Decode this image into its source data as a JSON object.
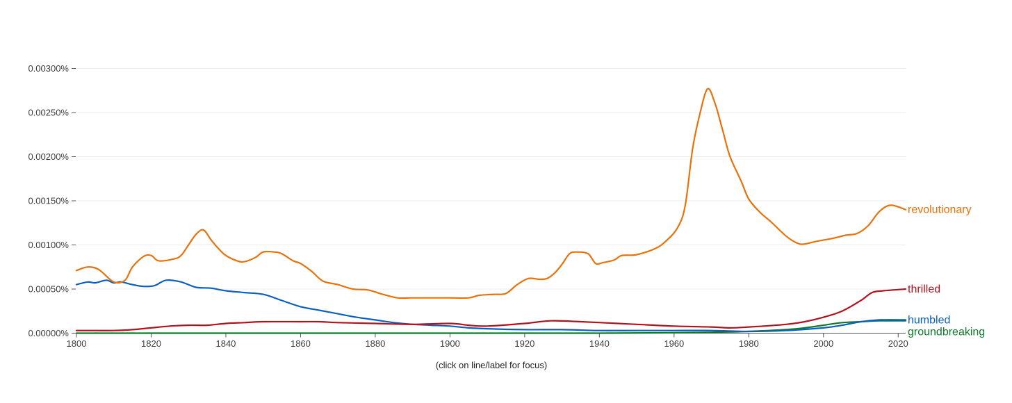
{
  "chart_data": {
    "type": "line",
    "title": "",
    "xlabel": "",
    "ylabel": "",
    "xlim": [
      1800,
      2022
    ],
    "ylim": [
      0,
      0.003
    ],
    "x_ticks": [
      1800,
      1820,
      1840,
      1860,
      1880,
      1900,
      1920,
      1940,
      1960,
      1980,
      2000,
      2020
    ],
    "y_ticks": [
      0,
      0.0005,
      0.001,
      0.0015,
      0.002,
      0.0025,
      0.003
    ],
    "y_tick_labels": [
      "0.00000%",
      "0.00050%",
      "0.00100%",
      "0.00150%",
      "0.00200%",
      "0.00250%",
      "0.00300%"
    ],
    "grid": true,
    "series": [
      {
        "name": "revolutionary",
        "color": "#e8710a",
        "points": [
          [
            1800,
            0.00071
          ],
          [
            1803,
            0.00075
          ],
          [
            1806,
            0.00072
          ],
          [
            1810,
            0.00058
          ],
          [
            1813,
            0.0006
          ],
          [
            1815,
            0.00075
          ],
          [
            1818,
            0.00087
          ],
          [
            1820,
            0.00088
          ],
          [
            1822,
            0.00082
          ],
          [
            1826,
            0.00084
          ],
          [
            1828,
            0.00088
          ],
          [
            1830,
            0.001
          ],
          [
            1832,
            0.00112
          ],
          [
            1834,
            0.00117
          ],
          [
            1836,
            0.00106
          ],
          [
            1838,
            0.00096
          ],
          [
            1840,
            0.00088
          ],
          [
            1843,
            0.00082
          ],
          [
            1845,
            0.00081
          ],
          [
            1848,
            0.00086
          ],
          [
            1850,
            0.00092
          ],
          [
            1853,
            0.00092
          ],
          [
            1855,
            0.0009
          ],
          [
            1858,
            0.00082
          ],
          [
            1860,
            0.00079
          ],
          [
            1863,
            0.0007
          ],
          [
            1866,
            0.00059
          ],
          [
            1870,
            0.00055
          ],
          [
            1874,
            0.0005
          ],
          [
            1878,
            0.00049
          ],
          [
            1882,
            0.00044
          ],
          [
            1886,
            0.0004
          ],
          [
            1890,
            0.0004
          ],
          [
            1895,
            0.0004
          ],
          [
            1900,
            0.0004
          ],
          [
            1905,
            0.0004
          ],
          [
            1908,
            0.00043
          ],
          [
            1912,
            0.00044
          ],
          [
            1915,
            0.00045
          ],
          [
            1918,
            0.00055
          ],
          [
            1921,
            0.00062
          ],
          [
            1924,
            0.00061
          ],
          [
            1926,
            0.00062
          ],
          [
            1928,
            0.00068
          ],
          [
            1930,
            0.00078
          ],
          [
            1932,
            0.0009
          ],
          [
            1934,
            0.00092
          ],
          [
            1937,
            0.0009
          ],
          [
            1939,
            0.00079
          ],
          [
            1941,
            0.0008
          ],
          [
            1944,
            0.00083
          ],
          [
            1946,
            0.00088
          ],
          [
            1950,
            0.00089
          ],
          [
            1955,
            0.00096
          ],
          [
            1958,
            0.00105
          ],
          [
            1961,
            0.0012
          ],
          [
            1963,
            0.00145
          ],
          [
            1965,
            0.0021
          ],
          [
            1967,
            0.0025
          ],
          [
            1969,
            0.00277
          ],
          [
            1971,
            0.0026
          ],
          [
            1973,
            0.0023
          ],
          [
            1975,
            0.002
          ],
          [
            1978,
            0.00172
          ],
          [
            1980,
            0.00152
          ],
          [
            1983,
            0.00137
          ],
          [
            1986,
            0.00126
          ],
          [
            1990,
            0.0011
          ],
          [
            1993,
            0.00102
          ],
          [
            1995,
            0.00101
          ],
          [
            1998,
            0.00104
          ],
          [
            2002,
            0.00107
          ],
          [
            2006,
            0.00111
          ],
          [
            2009,
            0.00113
          ],
          [
            2012,
            0.00122
          ],
          [
            2015,
            0.00138
          ],
          [
            2018,
            0.00145
          ],
          [
            2022,
            0.0014
          ]
        ]
      },
      {
        "name": "thrilled",
        "color": "#b3111b",
        "points": [
          [
            1800,
            3e-05
          ],
          [
            1805,
            3e-05
          ],
          [
            1810,
            3e-05
          ],
          [
            1815,
            4e-05
          ],
          [
            1820,
            6e-05
          ],
          [
            1825,
            8e-05
          ],
          [
            1830,
            9e-05
          ],
          [
            1835,
            9e-05
          ],
          [
            1840,
            0.00011
          ],
          [
            1845,
            0.00012
          ],
          [
            1850,
            0.00013
          ],
          [
            1860,
            0.00013
          ],
          [
            1865,
            0.00013
          ],
          [
            1870,
            0.00012
          ],
          [
            1880,
            0.00011
          ],
          [
            1890,
            0.0001
          ],
          [
            1900,
            0.00011
          ],
          [
            1905,
            9e-05
          ],
          [
            1910,
            8e-05
          ],
          [
            1920,
            0.00011
          ],
          [
            1927,
            0.00014
          ],
          [
            1935,
            0.00013
          ],
          [
            1945,
            0.00011
          ],
          [
            1950,
            0.0001
          ],
          [
            1960,
            8e-05
          ],
          [
            1970,
            7e-05
          ],
          [
            1975,
            6e-05
          ],
          [
            1980,
            7e-05
          ],
          [
            1990,
            0.0001
          ],
          [
            1995,
            0.00013
          ],
          [
            2000,
            0.00018
          ],
          [
            2005,
            0.00025
          ],
          [
            2010,
            0.00037
          ],
          [
            2013,
            0.00046
          ],
          [
            2016,
            0.00048
          ],
          [
            2022,
            0.0005
          ]
        ]
      },
      {
        "name": "humbled",
        "color": "#0b5fbf",
        "points": [
          [
            1800,
            0.00055
          ],
          [
            1803,
            0.00058
          ],
          [
            1805,
            0.00057
          ],
          [
            1808,
            0.0006
          ],
          [
            1810,
            0.00057
          ],
          [
            1812,
            0.00058
          ],
          [
            1815,
            0.00055
          ],
          [
            1818,
            0.00053
          ],
          [
            1821,
            0.00054
          ],
          [
            1824,
            0.0006
          ],
          [
            1828,
            0.00058
          ],
          [
            1832,
            0.00052
          ],
          [
            1836,
            0.00051
          ],
          [
            1840,
            0.00048
          ],
          [
            1845,
            0.00046
          ],
          [
            1850,
            0.00044
          ],
          [
            1855,
            0.00037
          ],
          [
            1860,
            0.0003
          ],
          [
            1865,
            0.00026
          ],
          [
            1870,
            0.00022
          ],
          [
            1875,
            0.00018
          ],
          [
            1880,
            0.00015
          ],
          [
            1885,
            0.00012
          ],
          [
            1890,
            0.0001
          ],
          [
            1895,
            9e-05
          ],
          [
            1900,
            8e-05
          ],
          [
            1905,
            6e-05
          ],
          [
            1910,
            5e-05
          ],
          [
            1920,
            4e-05
          ],
          [
            1930,
            4e-05
          ],
          [
            1940,
            3e-05
          ],
          [
            1950,
            3e-05
          ],
          [
            1960,
            3e-05
          ],
          [
            1970,
            3e-05
          ],
          [
            1980,
            2e-05
          ],
          [
            1990,
            3e-05
          ],
          [
            2000,
            6e-05
          ],
          [
            2005,
            9e-05
          ],
          [
            2010,
            0.00013
          ],
          [
            2015,
            0.00015
          ],
          [
            2022,
            0.00015
          ]
        ]
      },
      {
        "name": "groundbreaking",
        "color": "#0f7a2a",
        "points": [
          [
            1800,
            0
          ],
          [
            1850,
            0
          ],
          [
            1900,
            0
          ],
          [
            1940,
            0
          ],
          [
            1960,
            5e-06
          ],
          [
            1970,
            1e-05
          ],
          [
            1980,
            2e-05
          ],
          [
            1990,
            4e-05
          ],
          [
            1995,
            6e-05
          ],
          [
            2000,
            9e-05
          ],
          [
            2005,
            0.00012
          ],
          [
            2010,
            0.00013
          ],
          [
            2015,
            0.00014
          ],
          [
            2022,
            0.00014
          ]
        ]
      }
    ]
  },
  "caption": "(click on line/label for focus)"
}
